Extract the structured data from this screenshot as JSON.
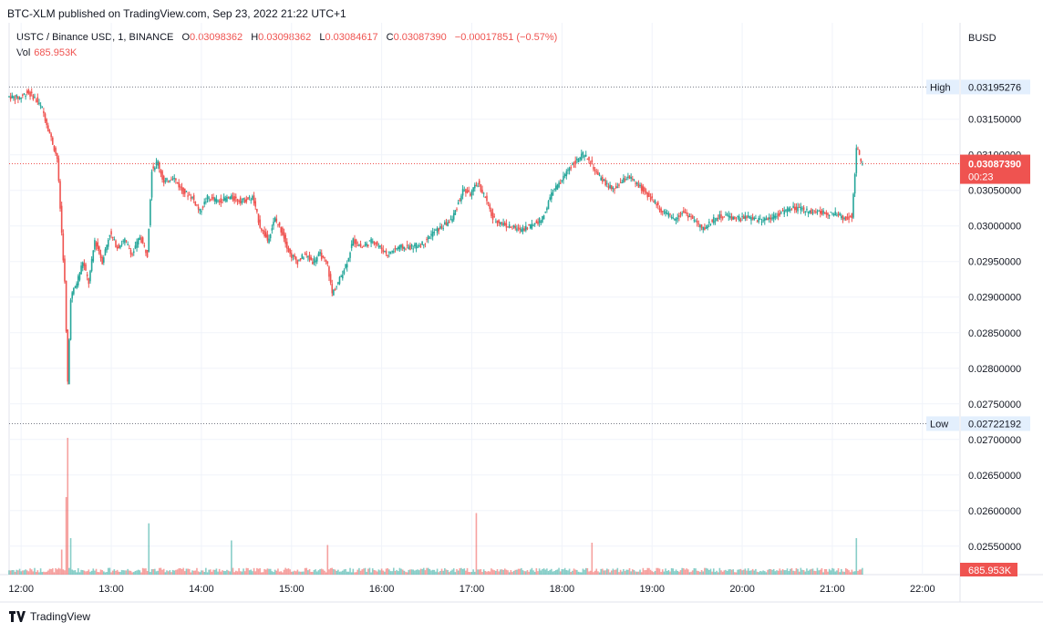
{
  "header": {
    "publisher_line": "BTC-XLM published on TradingView.com, Sep 23, 2022 21:22 UTC+1"
  },
  "legend": {
    "symbol": "USTC / Binance USD, 1, BINANCE",
    "open_label": "O",
    "open": "0.03098362",
    "high_label": "H",
    "high": "0.03098362",
    "low_label": "L",
    "low": "0.03084617",
    "close_label": "C",
    "close": "0.03087390",
    "change": "−0.00017851 (−0.57%)",
    "vol_label": "Vol",
    "vol": "685.953K"
  },
  "footer": {
    "brand": "TradingView"
  },
  "colors": {
    "up": "#26a69a",
    "down": "#ef5350",
    "grid": "#f0f3fa",
    "axis_text": "#131722"
  },
  "chart_data": {
    "type": "candlestick",
    "currency": "BUSD",
    "y_ticks": [
      0.027,
      0.0265,
      0.026,
      0.0255,
      0.0315,
      0.031,
      0.0305,
      0.03,
      0.0295,
      0.029,
      0.0285,
      0.028,
      0.0275
    ],
    "y_tick_labels": [
      "0.02700000",
      "0.02650000",
      "0.02600000",
      "0.02550000",
      "0.03150000",
      "0.03100000",
      "0.03050000",
      "0.03000000",
      "0.02950000",
      "0.02900000",
      "0.02850000",
      "0.02800000",
      "0.02750000"
    ],
    "ylim": [
      0.0251,
      0.03215
    ],
    "x_ticks": [
      "12:00",
      "13:00",
      "14:00",
      "15:00",
      "16:00",
      "17:00",
      "18:00",
      "19:00",
      "20:00",
      "21:00",
      "22:00"
    ],
    "x_start_time": "11:52",
    "x_end_time": "22:25",
    "high_marker": {
      "label": "High",
      "value": 0.03195276,
      "text": "0.03195276"
    },
    "low_marker": {
      "label": "Low",
      "value": 0.02722192,
      "text": "0.02722192"
    },
    "last_price": {
      "value": 0.0308739,
      "text": "0.03087390",
      "countdown": "00:23"
    },
    "volume_label": "685.953K",
    "price_path": [
      [
        "11:52",
        0.03182
      ],
      [
        "12:00",
        0.0318
      ],
      [
        "12:05",
        0.03188
      ],
      [
        "12:10",
        0.0318
      ],
      [
        "12:15",
        0.03165
      ],
      [
        "12:20",
        0.0313
      ],
      [
        "12:25",
        0.03095
      ],
      [
        "12:30",
        0.0292
      ],
      [
        "12:32",
        0.0278
      ],
      [
        "12:34",
        0.029
      ],
      [
        "12:38",
        0.0292
      ],
      [
        "12:42",
        0.0295
      ],
      [
        "12:46",
        0.0292
      ],
      [
        "12:50",
        0.0298
      ],
      [
        "12:55",
        0.0295
      ],
      [
        "13:00",
        0.0299
      ],
      [
        "13:05",
        0.0297
      ],
      [
        "13:10",
        0.0298
      ],
      [
        "13:15",
        0.0296
      ],
      [
        "13:20",
        0.02985
      ],
      [
        "13:25",
        0.0296
      ],
      [
        "13:28",
        0.0308
      ],
      [
        "13:32",
        0.0309
      ],
      [
        "13:36",
        0.0306
      ],
      [
        "13:42",
        0.0307
      ],
      [
        "13:48",
        0.0305
      ],
      [
        "13:55",
        0.0304
      ],
      [
        "14:00",
        0.0302
      ],
      [
        "14:05",
        0.0304
      ],
      [
        "14:12",
        0.03035
      ],
      [
        "14:20",
        0.0304
      ],
      [
        "14:28",
        0.03035
      ],
      [
        "14:35",
        0.0304
      ],
      [
        "14:40",
        0.03
      ],
      [
        "14:45",
        0.0298
      ],
      [
        "14:50",
        0.0301
      ],
      [
        "14:55",
        0.0299
      ],
      [
        "15:00",
        0.0296
      ],
      [
        "15:05",
        0.0295
      ],
      [
        "15:10",
        0.0296
      ],
      [
        "15:15",
        0.0295
      ],
      [
        "15:20",
        0.0296
      ],
      [
        "15:25",
        0.02945
      ],
      [
        "15:28",
        0.02905
      ],
      [
        "15:32",
        0.0292
      ],
      [
        "15:38",
        0.0295
      ],
      [
        "15:42",
        0.0298
      ],
      [
        "15:48",
        0.0297
      ],
      [
        "15:55",
        0.0298
      ],
      [
        "16:00",
        0.0297
      ],
      [
        "16:05",
        0.0296
      ],
      [
        "16:12",
        0.0297
      ],
      [
        "16:20",
        0.0297
      ],
      [
        "16:28",
        0.02975
      ],
      [
        "16:35",
        0.0299
      ],
      [
        "16:42",
        0.03
      ],
      [
        "16:48",
        0.0301
      ],
      [
        "16:55",
        0.0305
      ],
      [
        "17:00",
        0.03045
      ],
      [
        "17:05",
        0.0306
      ],
      [
        "17:10",
        0.0304
      ],
      [
        "17:15",
        0.0301
      ],
      [
        "17:20",
        0.03005
      ],
      [
        "17:25",
        0.03
      ],
      [
        "17:32",
        0.02995
      ],
      [
        "17:40",
        0.03
      ],
      [
        "17:48",
        0.0301
      ],
      [
        "17:55",
        0.0305
      ],
      [
        "18:00",
        0.0306
      ],
      [
        "18:05",
        0.0308
      ],
      [
        "18:10",
        0.0309
      ],
      [
        "18:15",
        0.031
      ],
      [
        "18:20",
        0.0309
      ],
      [
        "18:25",
        0.0307
      ],
      [
        "18:30",
        0.0306
      ],
      [
        "18:35",
        0.0305
      ],
      [
        "18:40",
        0.0306
      ],
      [
        "18:45",
        0.0307
      ],
      [
        "18:50",
        0.0306
      ],
      [
        "18:55",
        0.0305
      ],
      [
        "19:00",
        0.0304
      ],
      [
        "19:08",
        0.0302
      ],
      [
        "19:15",
        0.0301
      ],
      [
        "19:22",
        0.0302
      ],
      [
        "19:28",
        0.0301
      ],
      [
        "19:35",
        0.02995
      ],
      [
        "19:42",
        0.0301
      ],
      [
        "19:50",
        0.03015
      ],
      [
        "19:58",
        0.0301
      ],
      [
        "20:05",
        0.03012
      ],
      [
        "20:12",
        0.03008
      ],
      [
        "20:20",
        0.03012
      ],
      [
        "20:28",
        0.0302
      ],
      [
        "20:35",
        0.03025
      ],
      [
        "20:42",
        0.03022
      ],
      [
        "20:50",
        0.0302
      ],
      [
        "20:58",
        0.03018
      ],
      [
        "21:05",
        0.03016
      ],
      [
        "21:10",
        0.0301
      ],
      [
        "21:14",
        0.03015
      ],
      [
        "21:16",
        0.03075
      ],
      [
        "21:17",
        0.0311
      ],
      [
        "21:19",
        0.03098
      ],
      [
        "21:20",
        0.03087
      ]
    ],
    "volume_spikes": [
      [
        "12:27",
        0.022
      ],
      [
        "12:30",
        0.068
      ],
      [
        "12:31",
        0.12
      ],
      [
        "12:33",
        0.032
      ],
      [
        "13:25",
        0.045
      ],
      [
        "14:20",
        0.03
      ],
      [
        "15:24",
        0.026
      ],
      [
        "17:03",
        0.054
      ],
      [
        "18:20",
        0.028
      ],
      [
        "21:16",
        0.032
      ]
    ]
  }
}
